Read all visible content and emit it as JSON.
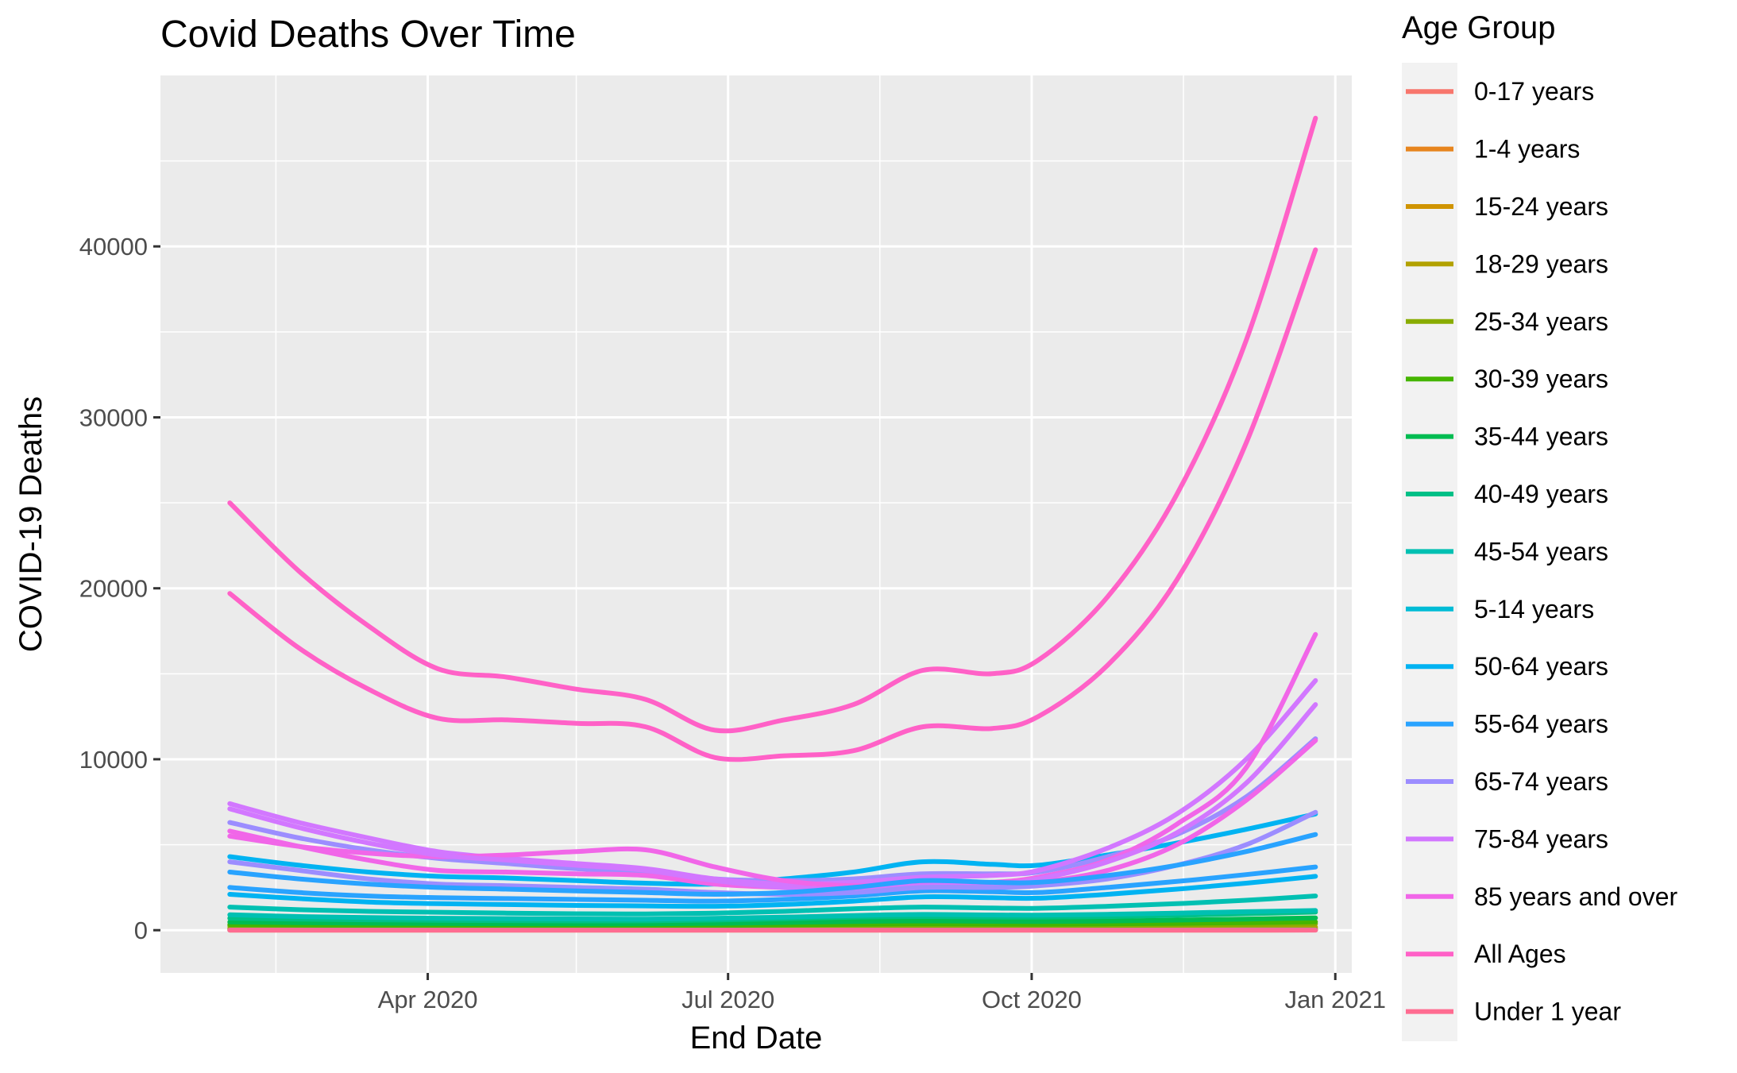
{
  "chart_data": {
    "type": "line",
    "title": "Covid Deaths Over Time",
    "xlabel": "End Date",
    "ylabel": "COVID-19 Deaths",
    "legend_title": "Age Group",
    "legend_position": "right",
    "grid": true,
    "x_range": [
      "2020-01-11",
      "2021-01-06"
    ],
    "ylim": [
      -2500,
      50000
    ],
    "y_ticks": [
      0,
      10000,
      20000,
      30000,
      40000
    ],
    "y_tick_labels": [
      "0",
      "10000",
      "20000",
      "30000",
      "40000"
    ],
    "x_ticks": [
      "2020-04-01",
      "2020-07-01",
      "2020-10-01",
      "2021-01-01"
    ],
    "x_tick_labels": [
      "Apr 2020",
      "Jul 2020",
      "Oct 2020",
      "Jan 2021"
    ],
    "x_minor_ticks": [
      "2020-02-15",
      "2020-05-16",
      "2020-08-16",
      "2020-11-16"
    ],
    "x": [
      "2020-02-01",
      "2020-02-22",
      "2020-03-14",
      "2020-04-04",
      "2020-04-25",
      "2020-05-16",
      "2020-06-06",
      "2020-06-27",
      "2020-07-18",
      "2020-08-08",
      "2020-08-29",
      "2020-09-19",
      "2020-10-03",
      "2020-10-24",
      "2020-11-14",
      "2020-12-05",
      "2020-12-26"
    ],
    "series": [
      {
        "name": "0-17 years",
        "color": "#F8766D",
        "values": [
          20,
          18,
          16,
          15,
          14,
          14,
          14,
          15,
          16,
          17,
          18,
          18,
          18,
          20,
          22,
          25,
          28
        ]
      },
      {
        "name": "1-4 years",
        "color": "#E7851E",
        "values": [
          5,
          5,
          4,
          4,
          4,
          4,
          4,
          4,
          4,
          5,
          5,
          5,
          5,
          5,
          6,
          6,
          7
        ]
      },
      {
        "name": "15-24 years",
        "color": "#D09400",
        "values": [
          60,
          55,
          50,
          48,
          46,
          45,
          45,
          48,
          55,
          62,
          66,
          64,
          62,
          65,
          70,
          78,
          88
        ]
      },
      {
        "name": "18-29 years",
        "color": "#B2A100",
        "values": [
          120,
          110,
          100,
          95,
          92,
          90,
          92,
          100,
          115,
          130,
          138,
          133,
          130,
          138,
          150,
          165,
          185
        ]
      },
      {
        "name": "25-34 years",
        "color": "#89AC00",
        "values": [
          250,
          230,
          210,
          200,
          195,
          190,
          195,
          210,
          240,
          270,
          285,
          275,
          270,
          285,
          310,
          340,
          380
        ]
      },
      {
        "name": "30-39 years",
        "color": "#45B500",
        "values": [
          330,
          300,
          280,
          265,
          255,
          250,
          255,
          275,
          310,
          350,
          370,
          355,
          350,
          370,
          400,
          440,
          490
        ]
      },
      {
        "name": "35-44 years",
        "color": "#00BC51",
        "values": [
          480,
          440,
          410,
          390,
          375,
          365,
          370,
          400,
          450,
          510,
          540,
          520,
          510,
          540,
          590,
          650,
          720
        ]
      },
      {
        "name": "40-49 years",
        "color": "#00C087",
        "values": [
          700,
          650,
          610,
          580,
          560,
          545,
          550,
          595,
          670,
          760,
          800,
          770,
          760,
          800,
          870,
          960,
          1060
        ]
      },
      {
        "name": "45-54 years",
        "color": "#00C0B2",
        "values": [
          1350,
          1200,
          1100,
          1050,
          1000,
          960,
          950,
          1000,
          1100,
          1250,
          1350,
          1300,
          1280,
          1400,
          1550,
          1750,
          2000
        ]
      },
      {
        "name": "5-14 years",
        "color": "#00BCD6",
        "values": [
          10,
          9,
          8,
          8,
          8,
          7,
          7,
          8,
          8,
          9,
          10,
          10,
          10,
          10,
          11,
          12,
          13
        ]
      },
      {
        "name": "50-64 years",
        "color": "#00B3F2",
        "values": [
          4300,
          3800,
          3400,
          3150,
          3050,
          2900,
          2750,
          2700,
          3000,
          3400,
          4000,
          3850,
          3800,
          4400,
          5100,
          5900,
          6800
        ]
      },
      {
        "name": "55-64 years",
        "color": "#29A3FF",
        "values": [
          2500,
          2200,
          2000,
          1900,
          1850,
          1800,
          1750,
          1700,
          1800,
          2000,
          2300,
          2250,
          2200,
          2500,
          2850,
          3250,
          3700
        ]
      },
      {
        "name": "65-74 years",
        "color": "#9C8DFF",
        "values": [
          6300,
          5400,
          4700,
          4200,
          3900,
          3600,
          3400,
          3000,
          2900,
          3000,
          3300,
          3300,
          3400,
          4300,
          5600,
          7800,
          11200
        ]
      },
      {
        "name": "75-84 years",
        "color": "#D277FF",
        "values": [
          7400,
          6300,
          5400,
          4600,
          4200,
          3900,
          3600,
          3000,
          2700,
          2800,
          3100,
          3200,
          3500,
          4800,
          6800,
          10000,
          14600
        ]
      },
      {
        "name": "85 years and over",
        "color": "#F166E8",
        "values": [
          5500,
          4900,
          4500,
          4300,
          4400,
          4600,
          4700,
          3700,
          2900,
          2600,
          2700,
          2800,
          3100,
          4100,
          6200,
          9500,
          17300
        ]
      },
      {
        "name": "All Ages",
        "color": "#FF61C7",
        "values": [
          25000,
          21000,
          17800,
          15300,
          14800,
          14100,
          13500,
          11700,
          12300,
          13200,
          15200,
          15000,
          15800,
          19500,
          25500,
          34500,
          47500
        ]
      },
      {
        "name": "Under 1 year",
        "color": "#FF6C91",
        "values": [
          2,
          2,
          2,
          2,
          2,
          2,
          2,
          2,
          2,
          2,
          2,
          2,
          2,
          2,
          2,
          2,
          2
        ]
      },
      {
        "name": "",
        "color": "#FF61C7",
        "values": [
          19700,
          16500,
          14100,
          12400,
          12300,
          12100,
          11900,
          10100,
          10200,
          10500,
          11900,
          11800,
          12500,
          15500,
          20500,
          28500,
          39800
        ]
      },
      {
        "name": "",
        "color": "#F166E8",
        "values": [
          5800,
          4900,
          4100,
          3500,
          3400,
          3300,
          3200,
          2700,
          2500,
          2400,
          2600,
          2700,
          2800,
          3500,
          5000,
          7600,
          11100
        ]
      },
      {
        "name": "",
        "color": "#D277FF",
        "values": [
          7100,
          6000,
          5100,
          4400,
          4100,
          3800,
          3500,
          2900,
          2500,
          2400,
          2600,
          2700,
          3000,
          4000,
          5700,
          8600,
          13200
        ]
      },
      {
        "name": "",
        "color": "#9C8DFF",
        "values": [
          4000,
          3500,
          3000,
          2700,
          2600,
          2500,
          2400,
          2200,
          2100,
          2200,
          2500,
          2500,
          2600,
          3000,
          3800,
          5000,
          6900
        ]
      },
      {
        "name": "",
        "color": "#29A3FF",
        "values": [
          3400,
          3000,
          2700,
          2500,
          2400,
          2300,
          2200,
          2100,
          2200,
          2500,
          2900,
          2800,
          2800,
          3200,
          3800,
          4600,
          5600
        ]
      },
      {
        "name": "",
        "color": "#00B3F2",
        "values": [
          2100,
          1850,
          1650,
          1550,
          1500,
          1450,
          1420,
          1400,
          1500,
          1700,
          1950,
          1900,
          1870,
          2100,
          2400,
          2750,
          3150
        ]
      },
      {
        "name": "",
        "color": "#00C0B2",
        "values": [
          900,
          800,
          740,
          700,
          680,
          660,
          650,
          690,
          760,
          860,
          920,
          890,
          880,
          930,
          1000,
          1080,
          1150
        ]
      }
    ]
  }
}
